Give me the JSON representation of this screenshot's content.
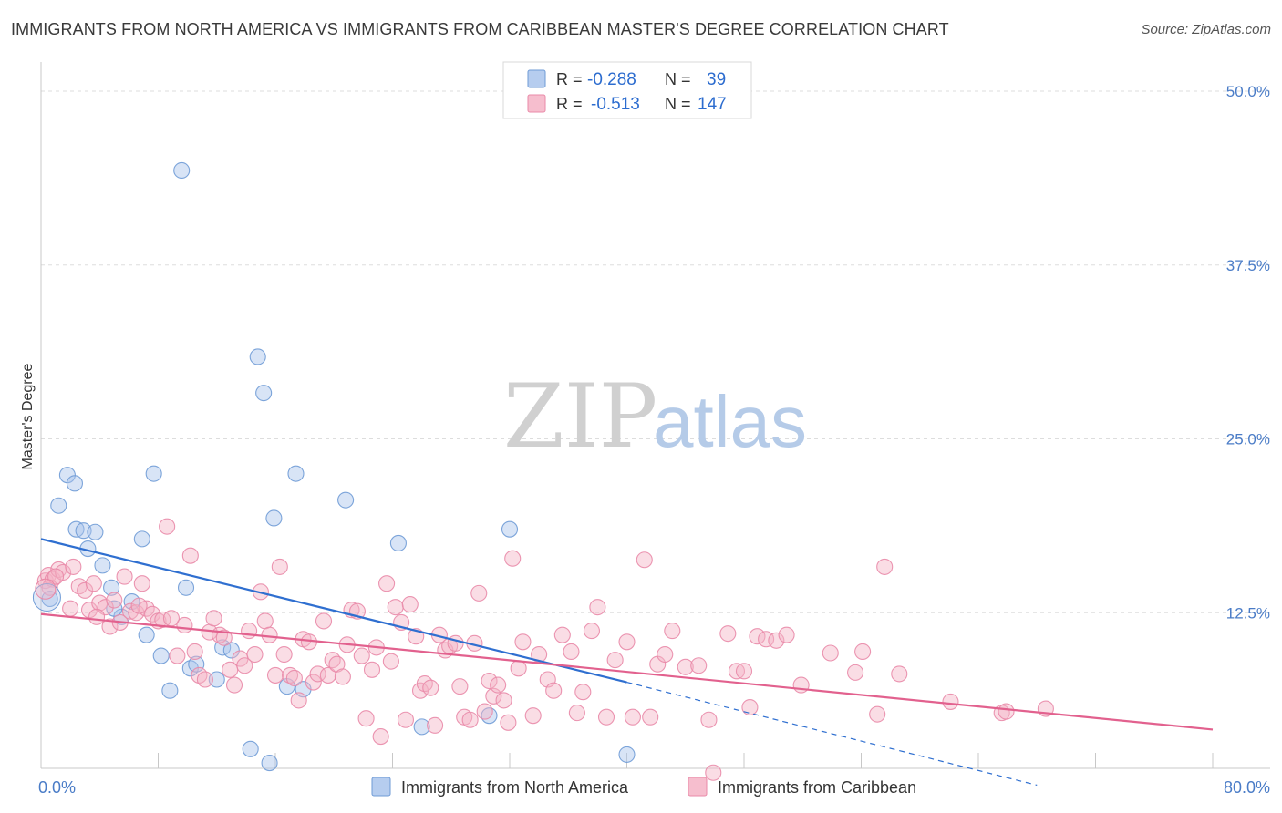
{
  "title": "IMMIGRANTS FROM NORTH AMERICA VS IMMIGRANTS FROM CARIBBEAN MASTER'S DEGREE CORRELATION CHART",
  "source": "Source: ZipAtlas.com",
  "watermark": {
    "zip": "ZIP",
    "atlas": "atlas"
  },
  "legend": {
    "rows": [
      {
        "r_label": "R = ",
        "r_value": "-0.288",
        "n_label": "N = ",
        "n_value": "39",
        "color": "#a9c4ec"
      },
      {
        "r_label": "R = ",
        "r_value": "-0.513",
        "n_label": "N = ",
        "n_value": "147",
        "color": "#f5b3c6"
      }
    ]
  },
  "bottom_legend": [
    {
      "label": "Immigrants from North America",
      "color": "#a9c4ec"
    },
    {
      "label": "Immigrants from Caribbean",
      "color": "#f5b3c6"
    }
  ],
  "chart_data": {
    "type": "scatter",
    "xlabel": "",
    "ylabel": "Master's Degree",
    "xlim": [
      0,
      80
    ],
    "ylim": [
      0,
      50
    ],
    "x_tick_labels": [
      {
        "value": 0,
        "label": "0.0%"
      },
      {
        "value": 80,
        "label": "80.0%"
      }
    ],
    "y_tick_labels": [
      {
        "value": 12.5,
        "label": "12.5%"
      },
      {
        "value": 25,
        "label": "25.0%"
      },
      {
        "value": 37.5,
        "label": "37.5%"
      },
      {
        "value": 50,
        "label": "50.0%"
      }
    ],
    "grid": true,
    "legend_position": "top-center",
    "series": [
      {
        "name": "Immigrants from North America",
        "color": "#a9c4ec",
        "stroke": "#6f9bd6",
        "trend": {
          "x0": 0,
          "y0": 17.8,
          "x1": 40,
          "y1": 7.5,
          "dash_to_x": 68,
          "dash_to_y": 0.1,
          "color": "#2f6fd0"
        },
        "points": [
          [
            1.2,
            20.2
          ],
          [
            1.8,
            22.4
          ],
          [
            2.3,
            21.8
          ],
          [
            2.4,
            18.5
          ],
          [
            2.9,
            18.4
          ],
          [
            3.2,
            17.1
          ],
          [
            3.7,
            18.3
          ],
          [
            4.2,
            15.9
          ],
          [
            4.8,
            14.3
          ],
          [
            5.5,
            12.2
          ],
          [
            6.2,
            13.3
          ],
          [
            6.9,
            17.8
          ],
          [
            7.2,
            10.9
          ],
          [
            7.7,
            22.5
          ],
          [
            8.2,
            9.4
          ],
          [
            8.8,
            6.9
          ],
          [
            9.6,
            44.3
          ],
          [
            9.9,
            14.3
          ],
          [
            10.2,
            8.5
          ],
          [
            10.6,
            8.8
          ],
          [
            12.0,
            7.7
          ],
          [
            12.4,
            10.0
          ],
          [
            13.0,
            9.8
          ],
          [
            14.3,
            2.7
          ],
          [
            14.8,
            30.9
          ],
          [
            15.2,
            28.3
          ],
          [
            15.6,
            1.7
          ],
          [
            15.9,
            19.3
          ],
          [
            16.8,
            7.2
          ],
          [
            17.4,
            22.5
          ],
          [
            17.9,
            7.0
          ],
          [
            20.8,
            20.6
          ],
          [
            24.4,
            17.5
          ],
          [
            26.0,
            4.3
          ],
          [
            30.6,
            5.1
          ],
          [
            32.0,
            18.5
          ],
          [
            40.0,
            2.3
          ],
          [
            0.6,
            13.5
          ],
          [
            5.0,
            12.8
          ]
        ]
      },
      {
        "name": "Immigrants from Caribbean",
        "color": "#f5b3c6",
        "stroke": "#e98aa8",
        "trend": {
          "x0": 0,
          "y0": 12.4,
          "x1": 80,
          "y1": 4.1,
          "color": "#e2618e"
        },
        "points": [
          [
            0.3,
            14.8
          ],
          [
            0.5,
            15.2
          ],
          [
            0.8,
            14.9
          ],
          [
            1.2,
            15.6
          ],
          [
            1.5,
            15.4
          ],
          [
            2.2,
            15.8
          ],
          [
            2.6,
            14.4
          ],
          [
            3.0,
            14.1
          ],
          [
            3.3,
            12.7
          ],
          [
            3.6,
            14.6
          ],
          [
            4.0,
            13.2
          ],
          [
            4.4,
            12.9
          ],
          [
            4.7,
            11.5
          ],
          [
            5.0,
            13.4
          ],
          [
            5.4,
            11.8
          ],
          [
            5.7,
            15.1
          ],
          [
            6.1,
            12.6
          ],
          [
            6.5,
            12.5
          ],
          [
            6.9,
            14.6
          ],
          [
            7.2,
            12.8
          ],
          [
            7.6,
            12.4
          ],
          [
            8.0,
            11.9
          ],
          [
            8.3,
            12.0
          ],
          [
            8.6,
            18.7
          ],
          [
            8.9,
            12.1
          ],
          [
            9.3,
            9.4
          ],
          [
            9.8,
            11.6
          ],
          [
            10.2,
            16.6
          ],
          [
            10.5,
            9.7
          ],
          [
            10.8,
            8.0
          ],
          [
            11.2,
            7.7
          ],
          [
            11.5,
            11.1
          ],
          [
            11.8,
            12.1
          ],
          [
            12.2,
            10.9
          ],
          [
            12.5,
            10.7
          ],
          [
            12.9,
            8.4
          ],
          [
            13.2,
            7.3
          ],
          [
            13.6,
            9.2
          ],
          [
            13.9,
            8.7
          ],
          [
            14.2,
            11.2
          ],
          [
            14.6,
            9.5
          ],
          [
            15.0,
            14.0
          ],
          [
            15.3,
            11.9
          ],
          [
            15.6,
            10.9
          ],
          [
            16.0,
            8.0
          ],
          [
            16.3,
            15.8
          ],
          [
            16.6,
            9.5
          ],
          [
            17.0,
            8.0
          ],
          [
            17.3,
            7.8
          ],
          [
            17.6,
            6.2
          ],
          [
            17.9,
            10.6
          ],
          [
            18.3,
            10.4
          ],
          [
            18.6,
            7.5
          ],
          [
            18.9,
            8.1
          ],
          [
            19.3,
            11.9
          ],
          [
            19.6,
            8.0
          ],
          [
            19.9,
            9.1
          ],
          [
            20.2,
            8.8
          ],
          [
            20.6,
            7.9
          ],
          [
            20.9,
            10.2
          ],
          [
            21.2,
            12.7
          ],
          [
            21.6,
            12.6
          ],
          [
            21.9,
            9.4
          ],
          [
            22.2,
            4.9
          ],
          [
            22.6,
            8.4
          ],
          [
            22.9,
            10.0
          ],
          [
            23.2,
            3.6
          ],
          [
            23.6,
            14.6
          ],
          [
            23.9,
            9.0
          ],
          [
            24.2,
            12.9
          ],
          [
            24.6,
            11.8
          ],
          [
            24.9,
            4.8
          ],
          [
            25.2,
            13.1
          ],
          [
            25.6,
            10.8
          ],
          [
            25.9,
            6.9
          ],
          [
            26.2,
            7.4
          ],
          [
            26.6,
            7.1
          ],
          [
            26.9,
            4.4
          ],
          [
            27.2,
            10.9
          ],
          [
            27.6,
            9.8
          ],
          [
            27.9,
            10.1
          ],
          [
            28.3,
            10.3
          ],
          [
            28.6,
            7.2
          ],
          [
            28.9,
            5.0
          ],
          [
            29.3,
            4.8
          ],
          [
            29.6,
            10.3
          ],
          [
            29.9,
            13.9
          ],
          [
            30.3,
            5.4
          ],
          [
            30.6,
            7.6
          ],
          [
            30.9,
            6.5
          ],
          [
            31.2,
            7.3
          ],
          [
            31.6,
            6.2
          ],
          [
            31.9,
            4.6
          ],
          [
            32.2,
            16.4
          ],
          [
            32.6,
            8.5
          ],
          [
            32.9,
            10.4
          ],
          [
            33.6,
            5.1
          ],
          [
            34.0,
            9.5
          ],
          [
            34.6,
            7.7
          ],
          [
            35.0,
            6.9
          ],
          [
            35.6,
            10.9
          ],
          [
            36.2,
            9.7
          ],
          [
            36.6,
            5.3
          ],
          [
            37.0,
            6.8
          ],
          [
            37.6,
            11.2
          ],
          [
            38.0,
            12.9
          ],
          [
            38.6,
            5.0
          ],
          [
            39.2,
            9.1
          ],
          [
            40.0,
            10.4
          ],
          [
            40.4,
            5.0
          ],
          [
            41.2,
            16.3
          ],
          [
            41.6,
            5.0
          ],
          [
            42.1,
            8.8
          ],
          [
            42.6,
            9.5
          ],
          [
            43.1,
            11.2
          ],
          [
            44.0,
            8.6
          ],
          [
            44.9,
            8.7
          ],
          [
            45.6,
            4.8
          ],
          [
            45.9,
            1.0
          ],
          [
            46.9,
            11.0
          ],
          [
            47.5,
            8.3
          ],
          [
            48.0,
            8.3
          ],
          [
            48.4,
            5.7
          ],
          [
            48.9,
            10.8
          ],
          [
            49.5,
            10.6
          ],
          [
            50.2,
            10.5
          ],
          [
            50.9,
            10.9
          ],
          [
            51.9,
            7.3
          ],
          [
            53.9,
            9.6
          ],
          [
            55.6,
            8.2
          ],
          [
            56.1,
            9.7
          ],
          [
            57.1,
            5.2
          ],
          [
            57.6,
            15.8
          ],
          [
            58.6,
            8.1
          ],
          [
            62.1,
            6.1
          ],
          [
            65.6,
            5.3
          ],
          [
            65.9,
            5.4
          ],
          [
            68.6,
            5.6
          ],
          [
            0.6,
            14.3
          ],
          [
            1.0,
            15.1
          ],
          [
            2.0,
            12.8
          ],
          [
            3.8,
            12.2
          ],
          [
            6.7,
            13.0
          ]
        ]
      }
    ]
  }
}
